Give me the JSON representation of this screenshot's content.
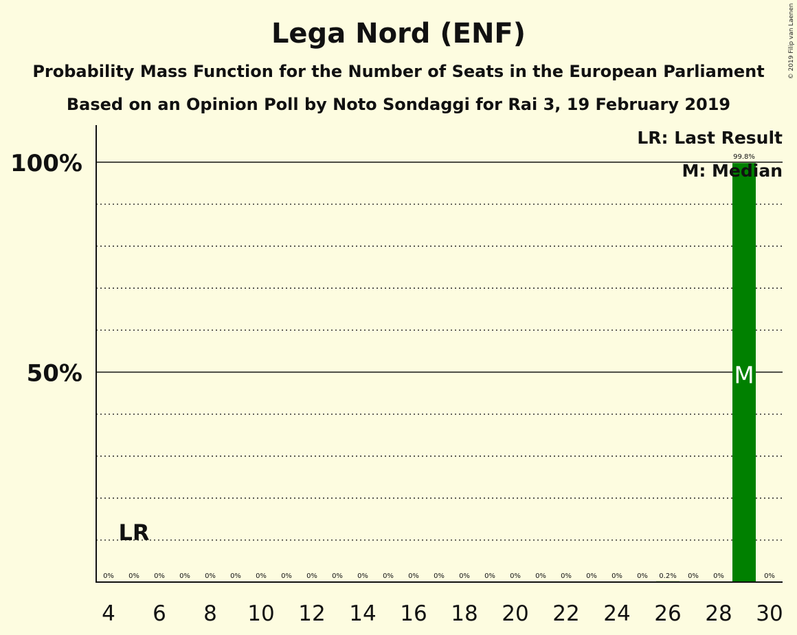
{
  "title": "Lega Nord (ENF)",
  "subtitle": "Probability Mass Function for the Number of Seats in the European Parliament",
  "subtitle2": "Based on an Opinion Poll by Noto Sondaggi for Rai 3, 19 February 2019",
  "copyright": "© 2019 Filip van Laenen",
  "legend": {
    "last_result": "LR: Last Result",
    "median": "M: Median"
  },
  "colors": {
    "background": "#fdfce0",
    "bar": "#008000"
  },
  "chart_data": {
    "type": "bar",
    "x": [
      4,
      5,
      6,
      7,
      8,
      9,
      10,
      11,
      12,
      13,
      14,
      15,
      16,
      17,
      18,
      19,
      20,
      21,
      22,
      23,
      24,
      25,
      26,
      27,
      28,
      29,
      30
    ],
    "values": [
      0,
      0,
      0,
      0,
      0,
      0,
      0,
      0,
      0,
      0,
      0,
      0,
      0,
      0,
      0,
      0,
      0,
      0,
      0,
      0,
      0,
      0,
      0.2,
      0,
      0,
      99.8,
      0
    ],
    "value_labels": [
      "0%",
      "0%",
      "0%",
      "0%",
      "0%",
      "0%",
      "0%",
      "0%",
      "0%",
      "0%",
      "0%",
      "0%",
      "0%",
      "0%",
      "0%",
      "0%",
      "0%",
      "0%",
      "0%",
      "0%",
      "0%",
      "0%",
      "0.2%",
      "0%",
      "0%",
      "99.8%",
      "0%"
    ],
    "x_ticks": [
      "4",
      "6",
      "8",
      "10",
      "12",
      "14",
      "16",
      "18",
      "20",
      "22",
      "24",
      "26",
      "28",
      "30"
    ],
    "y_ticks": [
      "50%",
      "100%"
    ],
    "ylim": [
      0,
      109
    ],
    "xlim": [
      4,
      30
    ],
    "last_result": {
      "x": 5,
      "label": "LR"
    },
    "median": {
      "x": 29,
      "label": "M"
    },
    "grid": "dotted every 10%, solid at 50% and 100%",
    "legend_position": "top-right"
  }
}
